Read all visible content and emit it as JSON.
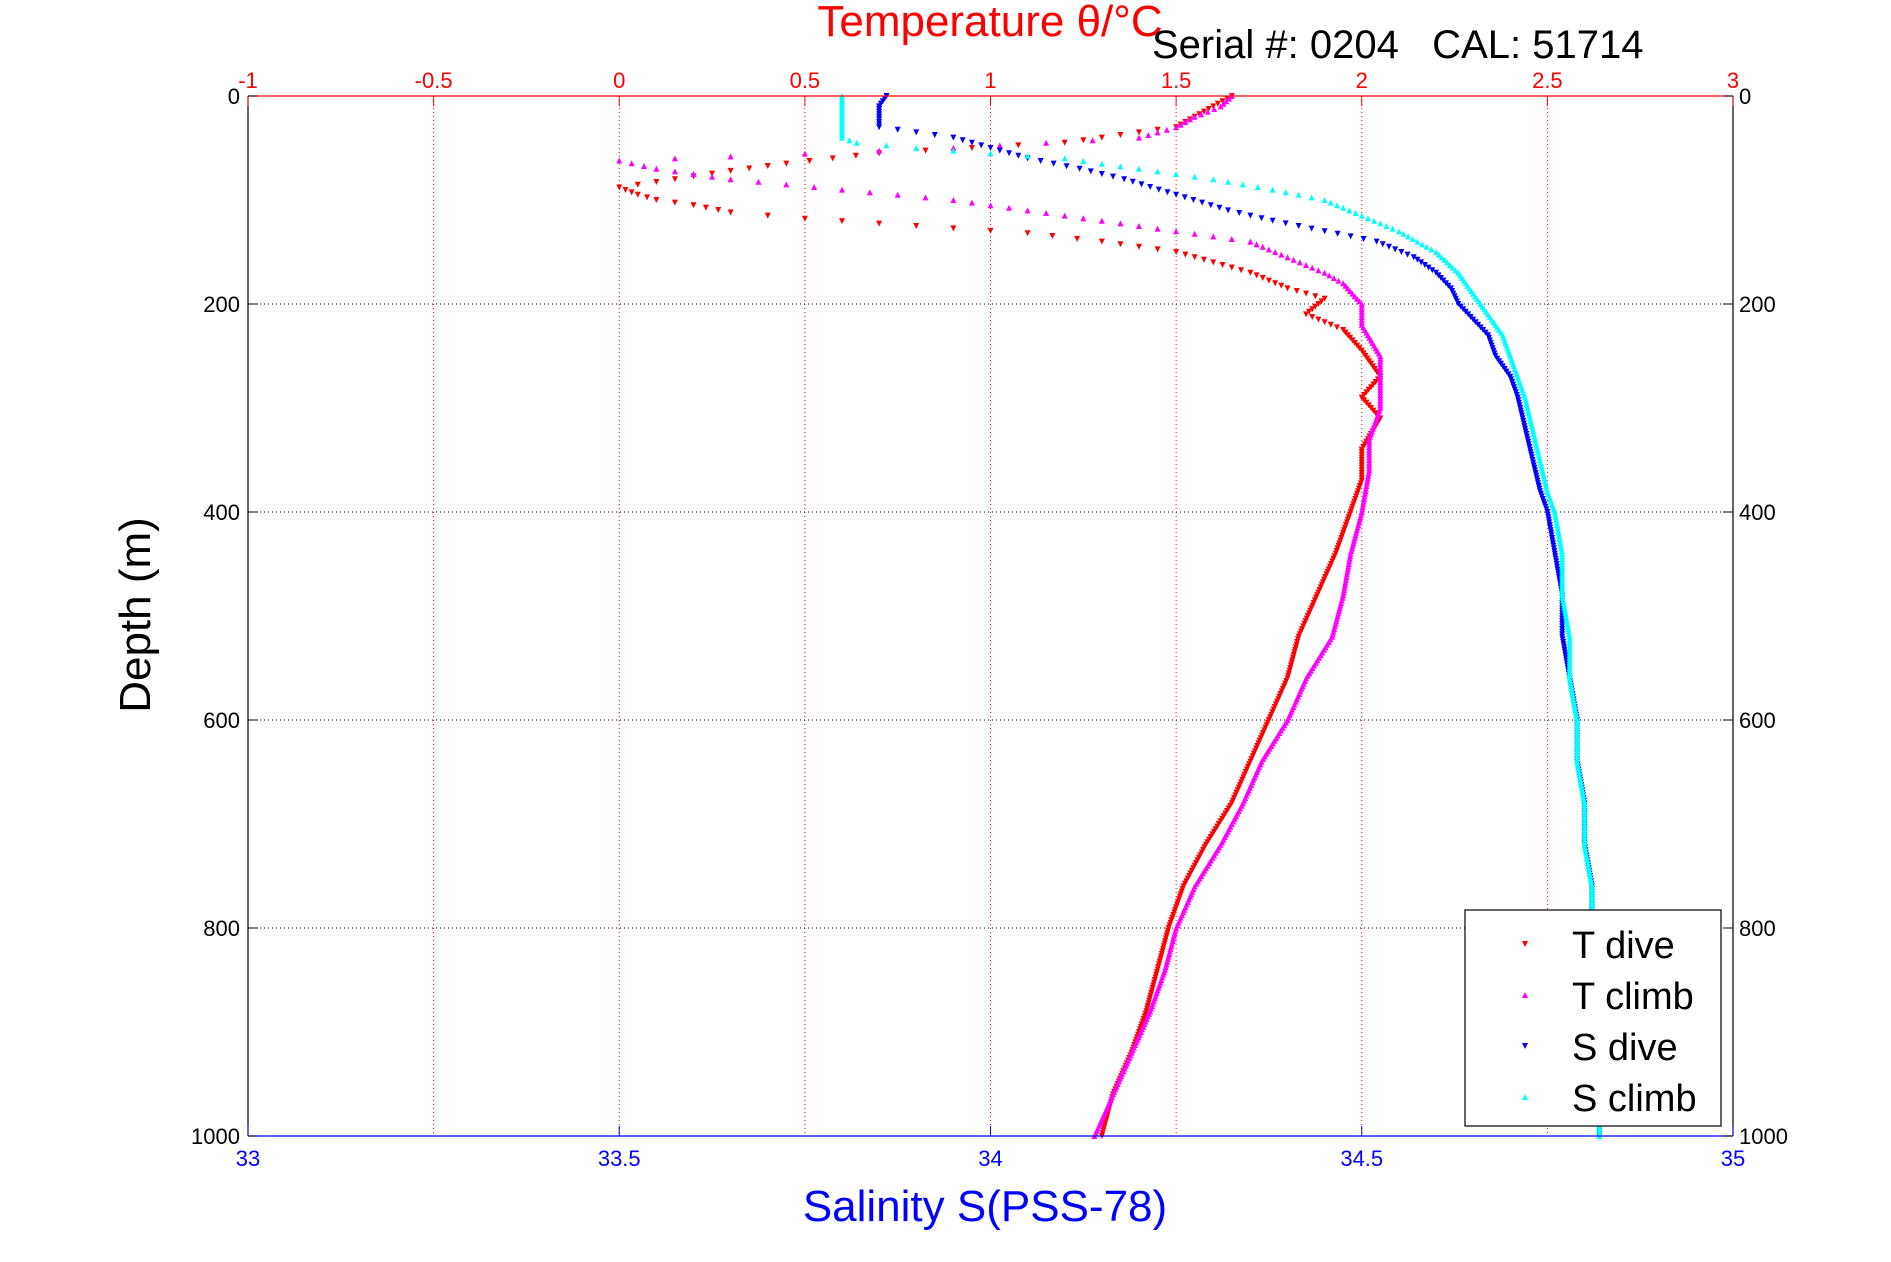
{
  "chart_data": {
    "type": "scatter",
    "title": "Temperature θ/°C",
    "subtitle": "Serial #: 0204   CAL: 51714",
    "ylabel": "Depth (m)",
    "x_bottom_label": "Salinity S(PSS-78)",
    "x_top_label": "Temperature θ/°C",
    "ylim": [
      1000,
      0
    ],
    "y_reversed": true,
    "x_bottom_lim": [
      33,
      35
    ],
    "x_top_lim": [
      -1,
      3
    ],
    "y_ticks": [
      "0",
      "200",
      "400",
      "600",
      "800",
      "1000"
    ],
    "y_tick_values": [
      0,
      200,
      400,
      600,
      800,
      1000
    ],
    "x_bottom_ticks": [
      "33",
      "33.5",
      "34",
      "34.5",
      "35"
    ],
    "x_bottom_tick_values": [
      33,
      33.5,
      34,
      34.5,
      35
    ],
    "x_top_ticks": [
      "-1",
      "-0.5",
      "0",
      "0.5",
      "1",
      "1.5",
      "2",
      "2.5",
      "3"
    ],
    "x_top_tick_values": [
      -1,
      -0.5,
      0,
      0.5,
      1,
      1.5,
      2,
      2.5,
      3
    ],
    "grid": true,
    "legend_position": "bottom-right",
    "colors": {
      "temperature_axis": "#ff0000",
      "salinity_axis": "#0000ff",
      "t_dive": "#ff0000",
      "t_climb": "#ff00ff",
      "s_dive": "#0000ff",
      "s_climb": "#00ffff"
    },
    "series": [
      {
        "name": "T dive",
        "axis": "top",
        "marker": "triangle-down",
        "color": "#ff0000",
        "points": [
          [
            1.65,
            0
          ],
          [
            1.6,
            10
          ],
          [
            1.55,
            20
          ],
          [
            1.5,
            30
          ],
          [
            1.2,
            45
          ],
          [
            0.7,
            55
          ],
          [
            0.45,
            65
          ],
          [
            0.3,
            72
          ],
          [
            0.15,
            80
          ],
          [
            0.0,
            88
          ],
          [
            0.05,
            95
          ],
          [
            0.1,
            100
          ],
          [
            0.2,
            105
          ],
          [
            0.3,
            112
          ],
          [
            0.5,
            118
          ],
          [
            0.8,
            125
          ],
          [
            1.1,
            132
          ],
          [
            1.3,
            140
          ],
          [
            1.5,
            150
          ],
          [
            1.6,
            160
          ],
          [
            1.7,
            170
          ],
          [
            1.8,
            185
          ],
          [
            1.9,
            195
          ],
          [
            1.85,
            210
          ],
          [
            1.95,
            225
          ],
          [
            2.0,
            245
          ],
          [
            2.05,
            270
          ],
          [
            2.0,
            290
          ],
          [
            2.05,
            310
          ],
          [
            2.0,
            340
          ],
          [
            2.0,
            370
          ],
          [
            1.97,
            400
          ],
          [
            1.93,
            440
          ],
          [
            1.88,
            480
          ],
          [
            1.83,
            520
          ],
          [
            1.8,
            560
          ],
          [
            1.75,
            600
          ],
          [
            1.7,
            640
          ],
          [
            1.65,
            680
          ],
          [
            1.58,
            720
          ],
          [
            1.52,
            760
          ],
          [
            1.48,
            800
          ],
          [
            1.45,
            840
          ],
          [
            1.42,
            880
          ],
          [
            1.38,
            920
          ],
          [
            1.33,
            960
          ],
          [
            1.3,
            1000
          ]
        ]
      },
      {
        "name": "T climb",
        "axis": "top",
        "marker": "triangle-up",
        "color": "#ff00ff",
        "points": [
          [
            1.65,
            0
          ],
          [
            1.62,
            10
          ],
          [
            1.55,
            20
          ],
          [
            1.5,
            30
          ],
          [
            1.4,
            40
          ],
          [
            0.9,
            50
          ],
          [
            0.3,
            58
          ],
          [
            0.0,
            62
          ],
          [
            0.1,
            70
          ],
          [
            0.3,
            80
          ],
          [
            0.6,
            90
          ],
          [
            0.9,
            100
          ],
          [
            1.1,
            110
          ],
          [
            1.3,
            120
          ],
          [
            1.5,
            130
          ],
          [
            1.7,
            140
          ],
          [
            1.8,
            155
          ],
          [
            1.9,
            170
          ],
          [
            1.95,
            180
          ],
          [
            2.0,
            200
          ],
          [
            2.0,
            220
          ],
          [
            2.05,
            250
          ],
          [
            2.05,
            275
          ],
          [
            2.05,
            300
          ],
          [
            2.02,
            330
          ],
          [
            2.02,
            360
          ],
          [
            2.0,
            400
          ],
          [
            1.97,
            440
          ],
          [
            1.95,
            480
          ],
          [
            1.92,
            520
          ],
          [
            1.85,
            560
          ],
          [
            1.8,
            600
          ],
          [
            1.73,
            640
          ],
          [
            1.68,
            680
          ],
          [
            1.62,
            720
          ],
          [
            1.55,
            760
          ],
          [
            1.5,
            800
          ],
          [
            1.47,
            840
          ],
          [
            1.43,
            880
          ],
          [
            1.38,
            920
          ],
          [
            1.33,
            960
          ],
          [
            1.28,
            1000
          ]
        ]
      },
      {
        "name": "S dive",
        "axis": "bottom",
        "marker": "triangle-down",
        "color": "#0000ff",
        "points": [
          [
            33.86,
            0
          ],
          [
            33.85,
            10
          ],
          [
            33.85,
            20
          ],
          [
            33.85,
            30
          ],
          [
            33.9,
            35
          ],
          [
            33.95,
            40
          ],
          [
            34.0,
            50
          ],
          [
            34.05,
            60
          ],
          [
            34.12,
            70
          ],
          [
            34.18,
            80
          ],
          [
            34.25,
            95
          ],
          [
            34.32,
            110
          ],
          [
            34.38,
            120
          ],
          [
            34.45,
            130
          ],
          [
            34.52,
            140
          ],
          [
            34.57,
            155
          ],
          [
            34.6,
            170
          ],
          [
            34.62,
            185
          ],
          [
            34.63,
            200
          ],
          [
            34.65,
            215
          ],
          [
            34.67,
            230
          ],
          [
            34.68,
            250
          ],
          [
            34.7,
            270
          ],
          [
            34.71,
            290
          ],
          [
            34.72,
            320
          ],
          [
            34.73,
            350
          ],
          [
            34.74,
            380
          ],
          [
            34.75,
            400
          ],
          [
            34.76,
            440
          ],
          [
            34.77,
            480
          ],
          [
            34.77,
            520
          ],
          [
            34.78,
            560
          ],
          [
            34.79,
            600
          ],
          [
            34.79,
            640
          ],
          [
            34.8,
            680
          ],
          [
            34.8,
            720
          ],
          [
            34.81,
            760
          ],
          [
            34.81,
            800
          ],
          [
            34.81,
            840
          ],
          [
            34.82,
            880
          ],
          [
            34.82,
            920
          ],
          [
            34.82,
            960
          ],
          [
            34.82,
            1000
          ]
        ]
      },
      {
        "name": "S climb",
        "axis": "bottom",
        "marker": "triangle-up",
        "color": "#00ffff",
        "points": [
          [
            33.8,
            0
          ],
          [
            33.8,
            10
          ],
          [
            33.8,
            20
          ],
          [
            33.8,
            30
          ],
          [
            33.8,
            40
          ],
          [
            33.82,
            45
          ],
          [
            33.9,
            50
          ],
          [
            34.0,
            55
          ],
          [
            34.1,
            60
          ],
          [
            34.2,
            70
          ],
          [
            34.3,
            80
          ],
          [
            34.38,
            90
          ],
          [
            34.45,
            100
          ],
          [
            34.5,
            115
          ],
          [
            34.55,
            130
          ],
          [
            34.6,
            150
          ],
          [
            34.63,
            170
          ],
          [
            34.65,
            190
          ],
          [
            34.67,
            210
          ],
          [
            34.69,
            230
          ],
          [
            34.7,
            250
          ],
          [
            34.71,
            270
          ],
          [
            34.72,
            290
          ],
          [
            34.73,
            320
          ],
          [
            34.74,
            350
          ],
          [
            34.75,
            380
          ],
          [
            34.76,
            400
          ],
          [
            34.77,
            440
          ],
          [
            34.77,
            480
          ],
          [
            34.78,
            520
          ],
          [
            34.78,
            560
          ],
          [
            34.79,
            600
          ],
          [
            34.79,
            640
          ],
          [
            34.8,
            680
          ],
          [
            34.8,
            720
          ],
          [
            34.81,
            760
          ],
          [
            34.81,
            800
          ],
          [
            34.81,
            840
          ],
          [
            34.81,
            880
          ],
          [
            34.82,
            920
          ],
          [
            34.82,
            960
          ],
          [
            34.82,
            1000
          ]
        ]
      }
    ]
  }
}
